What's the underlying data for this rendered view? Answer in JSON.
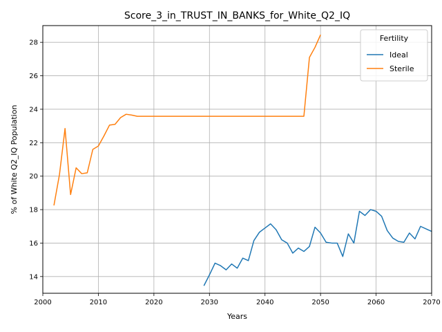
{
  "chart_data": {
    "type": "line",
    "title": "Score_3_in_TRUST_IN_BANKS_for_White_Q2_IQ",
    "xlabel": "Years",
    "ylabel": "% of White Q2_IQ Population",
    "xlim": [
      2000,
      2070
    ],
    "ylim": [
      13,
      29
    ],
    "xticks": [
      2000,
      2010,
      2020,
      2030,
      2040,
      2050,
      2060,
      2070
    ],
    "yticks": [
      14,
      16,
      18,
      20,
      22,
      24,
      26,
      28
    ],
    "grid": true,
    "legend": {
      "title": "Fertility",
      "position": "top-right"
    },
    "series": [
      {
        "name": "Ideal",
        "color": "#1f77b4",
        "x": [
          2029,
          2030,
          2031,
          2032,
          2033,
          2034,
          2035,
          2036,
          2037,
          2038,
          2039,
          2040,
          2041,
          2042,
          2043,
          2044,
          2045,
          2046,
          2047,
          2048,
          2049,
          2050,
          2051,
          2052,
          2053,
          2054,
          2055,
          2056,
          2057,
          2058,
          2059,
          2060,
          2061,
          2062,
          2063,
          2064,
          2065,
          2066,
          2067,
          2068,
          2069,
          2070
        ],
        "y": [
          13.45,
          14.1,
          14.8,
          14.65,
          14.4,
          14.75,
          14.5,
          15.1,
          14.95,
          16.15,
          16.65,
          16.9,
          17.15,
          16.8,
          16.2,
          16.0,
          15.4,
          15.7,
          15.5,
          15.8,
          16.95,
          16.6,
          16.05,
          16.0,
          16.0,
          15.2,
          16.55,
          16.0,
          17.9,
          17.65,
          18.0,
          17.9,
          17.6,
          16.75,
          16.3,
          16.1,
          16.05,
          16.6,
          16.25,
          17.0,
          16.85,
          16.7
        ]
      },
      {
        "name": "Sterile",
        "color": "#ff7f0e",
        "x": [
          2002,
          2003,
          2004,
          2005,
          2006,
          2007,
          2008,
          2009,
          2010,
          2011,
          2012,
          2013,
          2014,
          2015,
          2016,
          2017,
          2018,
          2019,
          2020,
          2025,
          2030,
          2035,
          2040,
          2045,
          2047,
          2048,
          2049,
          2050
        ],
        "y": [
          18.25,
          20.1,
          22.85,
          18.9,
          20.5,
          20.15,
          20.2,
          21.6,
          21.8,
          22.4,
          23.05,
          23.1,
          23.5,
          23.7,
          23.65,
          23.58,
          23.58,
          23.58,
          23.58,
          23.58,
          23.58,
          23.58,
          23.58,
          23.58,
          23.58,
          27.1,
          27.7,
          28.45
        ]
      }
    ]
  }
}
